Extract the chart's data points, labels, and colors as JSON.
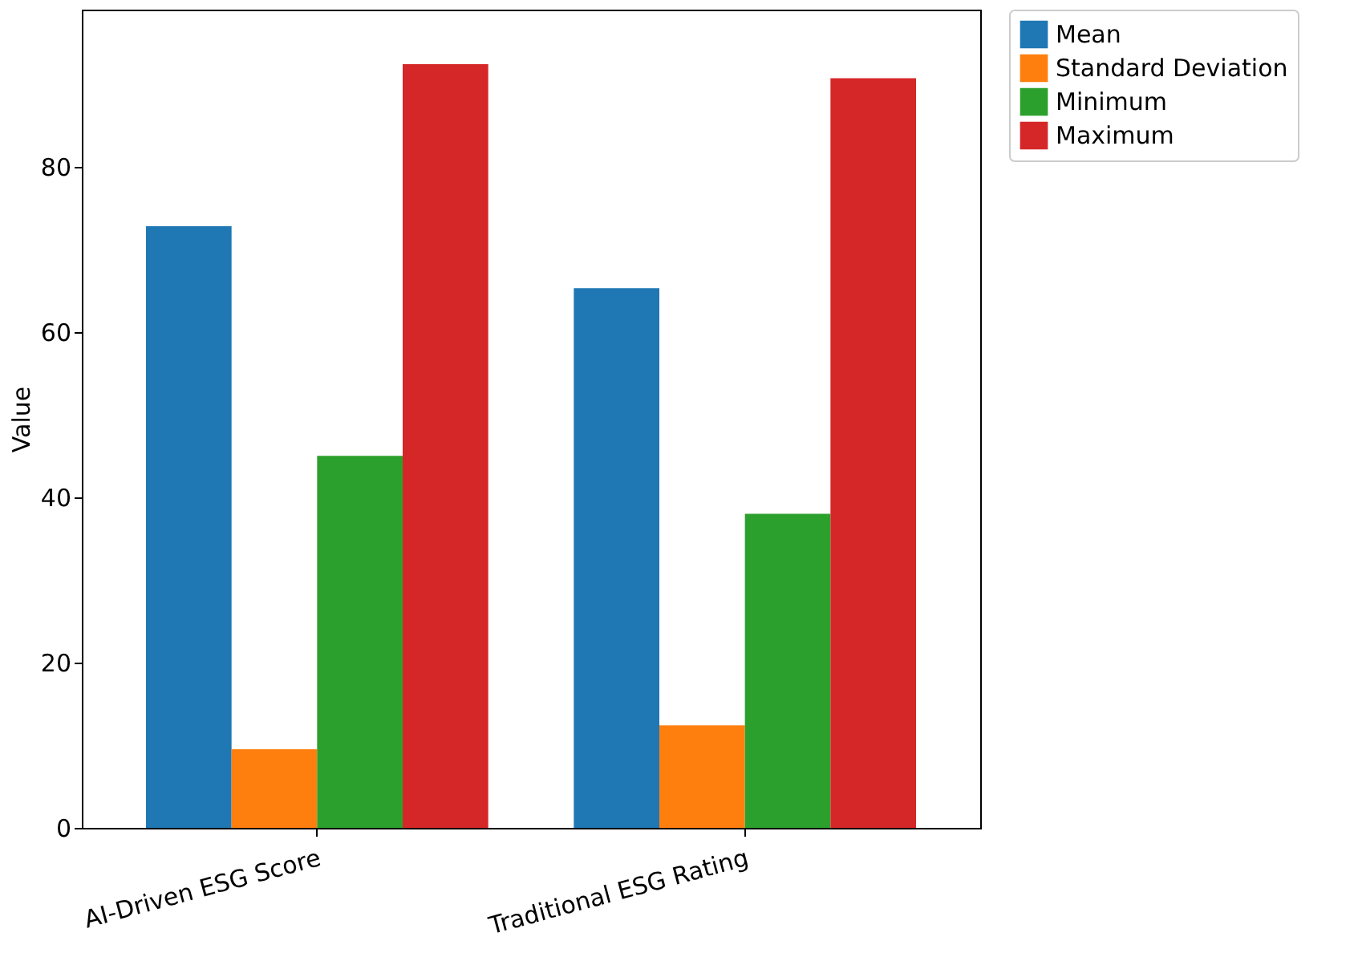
{
  "chart_data": {
    "type": "bar",
    "ylabel": "Value",
    "categories": [
      "AI-Driven ESG Score",
      "Traditional ESG Rating"
    ],
    "series": [
      {
        "name": "Mean",
        "color": "#1f77b4",
        "values": [
          72.8,
          65.3
        ]
      },
      {
        "name": "Standard Deviation",
        "color": "#ff7f0e",
        "values": [
          9.5,
          12.4
        ]
      },
      {
        "name": "Minimum",
        "color": "#2ca02c",
        "values": [
          45.0,
          38.0
        ]
      },
      {
        "name": "Maximum",
        "color": "#d62728",
        "values": [
          92.4,
          90.7
        ]
      }
    ],
    "ylim": [
      0,
      99
    ],
    "yticks": [
      0,
      20,
      40,
      60,
      80
    ],
    "grid": false,
    "legend": "right"
  }
}
